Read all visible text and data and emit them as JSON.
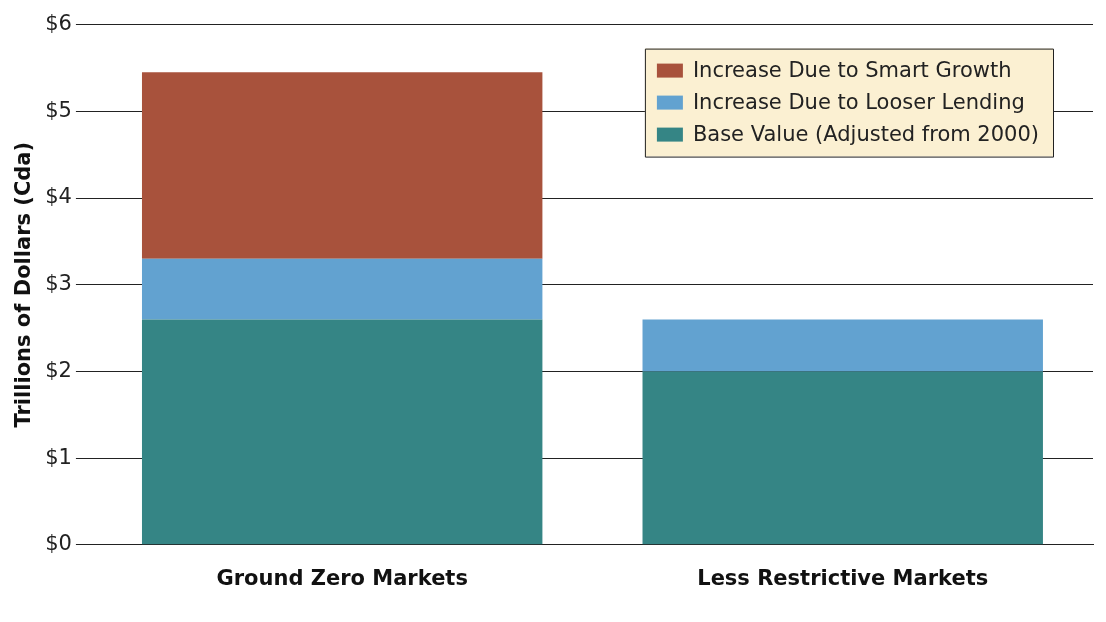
{
  "chart_data": {
    "type": "bar",
    "stacked": true,
    "ylabel": "Trillions of Dollars (Cda)",
    "categories": [
      "Ground Zero Markets",
      "Less Restrictive Markets"
    ],
    "series": [
      {
        "name": "Base Value (Adjusted from 2000)",
        "color": "#358585",
        "values": [
          2.6,
          2.0
        ]
      },
      {
        "name": "Increase Due to Looser Lending",
        "color": "#62a2d0",
        "values": [
          0.7,
          0.6
        ]
      },
      {
        "name": "Increase Due to Smart Growth",
        "color": "#a8523c",
        "values": [
          2.15,
          0
        ]
      }
    ],
    "ylim": [
      0,
      6
    ],
    "yticks": [
      {
        "value": 0,
        "label": "$0"
      },
      {
        "value": 1,
        "label": "$1"
      },
      {
        "value": 2,
        "label": "$2"
      },
      {
        "value": 3,
        "label": "$3"
      },
      {
        "value": 4,
        "label": "$4"
      },
      {
        "value": 5,
        "label": "$5"
      },
      {
        "value": 6,
        "label": "$6"
      }
    ],
    "grid": "y",
    "legend": "top right"
  }
}
